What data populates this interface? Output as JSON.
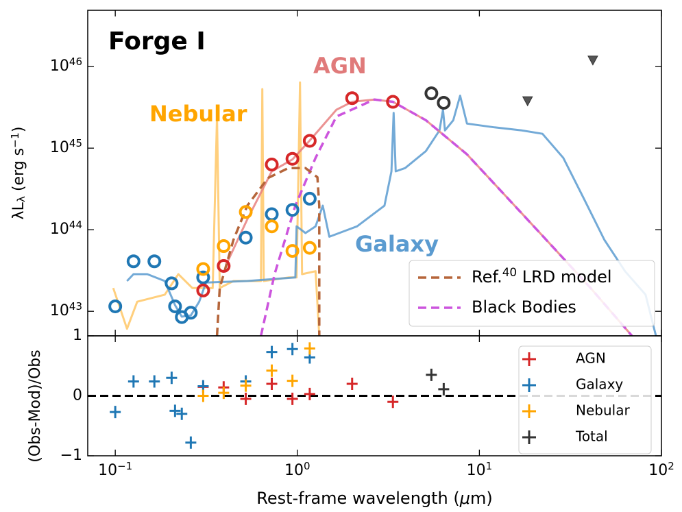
{
  "chart_data": [
    {
      "type": "scatter",
      "title": "Forge I",
      "xlog": true,
      "ylog": true,
      "xlim": [
        0.0706,
        100
      ],
      "ylim": [
        5e+42,
        4.9e+46
      ],
      "xticks": [
        0.1,
        1,
        10,
        100
      ],
      "yticks": [
        {
          "value": 1e+43,
          "label": "10",
          "sup": "43"
        },
        {
          "value": 1e+44,
          "label": "10",
          "sup": "44"
        },
        {
          "value": 1e+45,
          "label": "10",
          "sup": "45"
        },
        {
          "value": 1e+46,
          "label": "10",
          "sup": "46"
        }
      ],
      "ylabel": [
        {
          "t": "λL"
        },
        {
          "t": "λ",
          "s": "sub"
        },
        {
          "t": " (erg s"
        },
        {
          "t": "−1",
          "s": "sup"
        },
        {
          "t": ")"
        }
      ],
      "annotations": [
        {
          "text": "AGN",
          "color": "#e07a7a"
        },
        {
          "text": "Nebular",
          "color": "#ffa500"
        },
        {
          "text": "Galaxy",
          "color": "#5b9bd0"
        }
      ],
      "lines": [
        {
          "color": "#ffc766",
          "x": [
            0.0975,
            0.116,
            0.132,
            0.187,
            0.222,
            0.265,
            0.343,
            0.362,
            0.375,
            0.446,
            0.631,
            0.642,
            0.654,
            0.893,
            0.991,
            1.035,
            1.062,
            1.26,
            1.32
          ],
          "values": [
            1.93e+43,
            6.1e+42,
            1.31e+43,
            1.6e+43,
            2.85e+43,
            1.93e+43,
            1.93e+43,
            2.44e+45,
            1.93e+43,
            2.35e+43,
            2.35e+43,
            5.3e+45,
            2.35e+43,
            2.6e+43,
            2.6e+43,
            6.4e+45,
            2.85e+43,
            3.1e+43,
            5e+42
          ]
        },
        {
          "color": "#5b9bd0",
          "x": [
            0.116,
            0.126,
            0.15,
            0.187,
            0.213,
            0.232,
            0.26,
            0.289,
            0.315,
            0.531,
            0.975,
            0.991,
            1.109,
            1.26,
            1.38,
            1.5,
            2.13,
            3.01,
            3.29,
            3.38,
            3.47,
            3.91,
            5.08,
            6.04,
            6.31,
            6.47,
            7.19,
            7.84,
            8.55,
            12.1,
            17.1,
            22.2,
            28.9,
            37.5,
            48.6,
            63.1,
            81.8,
            93.3
          ],
          "values": [
            2.35e+43,
            2.85e+43,
            2.85e+43,
            2.35e+43,
            1.19e+43,
            8.6e+42,
            8.9e+42,
            1.31e+43,
            2.25e+43,
            2.35e+43,
            2.6e+43,
            1.1e+44,
            9.1e+43,
            1.1e+44,
            1.97e+44,
            8.2e+43,
            1.1e+44,
            1.97e+44,
            5.2e+44,
            2.7e+45,
            5.2e+44,
            5.7e+44,
            9.2e+44,
            1.65e+45,
            2.96e+45,
            1.65e+45,
            2.2e+45,
            4.4e+45,
            2e+45,
            1.8e+45,
            1.65e+45,
            1.5e+45,
            7.6e+44,
            2.4e+44,
            7.5e+43,
            3.1e+43,
            1.6e+43,
            5e+42
          ]
        },
        {
          "color": "#e88080",
          "x": [
            0.408,
            0.531,
            0.724,
            0.942,
            1.17,
            1.64,
            2.0,
            2.65,
            3.35,
            5.08,
            8.55,
            14.4,
            24.3,
            40.8,
            68.9
          ],
          "values": [
            3.8e+43,
            1.34e+44,
            5.2e+44,
            7.3e+44,
            1.24e+45,
            2.96e+45,
            3.7e+45,
            3.95e+45,
            3.7e+45,
            2.2e+45,
            8.4e+44,
            2.4e+44,
            6.8e+43,
            1.93e+43,
            5e+42
          ]
        },
        {
          "name": [
            {
              "t": "Black Bodies"
            }
          ],
          "color": "#cc55dd",
          "dash": true,
          "x": [
            0.631,
            0.75,
            0.975,
            1.26,
            1.64,
            2.65,
            3.35,
            5.08,
            8.55,
            14.4,
            24.3,
            40.8,
            68.9
          ],
          "values": [
            5e+42,
            2.85e+43,
            1.97e+44,
            7.6e+44,
            2.44e+45,
            3.95e+45,
            3.7e+45,
            2.2e+45,
            8.4e+44,
            2.4e+44,
            6.8e+43,
            1.93e+43,
            5e+42
          ]
        },
        {
          "name": [
            {
              "t": "Ref."
            },
            {
              "t": "40",
              "s": "sup"
            },
            {
              "t": " LRD model"
            }
          ],
          "color": "#b5653a",
          "dash": true,
          "x": [
            0.362,
            0.375,
            0.446,
            0.531,
            0.689,
            0.893,
            1.109,
            1.29,
            1.32,
            1.32
          ],
          "values": [
            5e+42,
            1.93e+43,
            7.5e+43,
            1.97e+44,
            4.3e+44,
            5.7e+44,
            5.7e+44,
            4.4e+44,
            1.97e+44,
            5e+42
          ]
        }
      ],
      "legend": "lower right",
      "series": [
        {
          "color": "#1f77b4",
          "marker": "circle",
          "x": [
            0.1,
            0.126,
            0.164,
            0.204,
            0.213,
            0.232,
            0.26,
            0.304,
            0.521,
            0.724,
            0.94,
            1.17
          ],
          "values": [
            1.15e+43,
            4.1e+43,
            4.1e+43,
            2.2e+43,
            1.15e+43,
            8.5e+42,
            9.6e+42,
            2.6e+43,
            8e+43,
            1.55e+44,
            1.75e+44,
            2.4e+44
          ]
        },
        {
          "color": "#ffa500",
          "marker": "circle",
          "x": [
            0.304,
            0.394,
            0.521,
            0.724,
            0.94,
            1.17
          ],
          "values": [
            3.3e+43,
            6.3e+43,
            1.65e+44,
            1.1e+44,
            5.5e+43,
            6e+43
          ]
        },
        {
          "color": "#d62728",
          "marker": "circle",
          "x": [
            0.304,
            0.394,
            0.724,
            0.94,
            1.17,
            2.0,
            3.35
          ],
          "values": [
            1.8e+43,
            3.6e+43,
            6.3e+44,
            7.4e+44,
            1.23e+45,
            4.1e+45,
            3.7e+45
          ]
        },
        {
          "color": "#333333",
          "marker": "circle",
          "x": [
            5.45,
            6.37
          ],
          "values": [
            4.7e+45,
            3.6e+45
          ]
        },
        {
          "color": "#555555",
          "marker": "triangle-down",
          "x": [
            18.4,
            42
          ],
          "values": [
            3.8e+45,
            1.2e+46
          ]
        }
      ]
    },
    {
      "type": "scatter",
      "xlog": true,
      "xlim": [
        0.0706,
        100
      ],
      "ylim": [
        -1,
        1
      ],
      "xticks": [
        {
          "value": 0.1,
          "label": "10",
          "sup": "−1"
        },
        {
          "value": 1,
          "label": "10",
          "sup": "0"
        },
        {
          "value": 10,
          "label": "10",
          "sup": "1"
        },
        {
          "value": 100,
          "label": "10",
          "sup": "2"
        }
      ],
      "yticks": [
        {
          "value": -1,
          "label": "−1"
        },
        0,
        1
      ],
      "xlabel": [
        {
          "t": "Rest-frame wavelength ("
        },
        {
          "t": "μ",
          "s": "italic"
        },
        {
          "t": "m)"
        }
      ],
      "ylabel": "(Obs-Mod)/Obs",
      "hline": 0,
      "legend": "upper right",
      "series": [
        {
          "name": "AGN",
          "color": "#d62728",
          "x": [
            0.304,
            0.394,
            0.521,
            0.724,
            0.94,
            1.17,
            2.0,
            3.35
          ],
          "values": [
            0.15,
            0.14,
            -0.05,
            0.2,
            -0.05,
            0.03,
            0.2,
            -0.1
          ]
        },
        {
          "name": "Galaxy",
          "color": "#1f77b4",
          "x": [
            0.1,
            0.126,
            0.164,
            0.204,
            0.213,
            0.232,
            0.26,
            0.304,
            0.521,
            0.724,
            0.94,
            1.17
          ],
          "values": [
            -0.27,
            0.24,
            0.24,
            0.3,
            -0.25,
            -0.3,
            -0.78,
            0.16,
            0.24,
            0.73,
            0.78,
            0.64
          ]
        },
        {
          "name": "Nebular",
          "color": "#ffa500",
          "x": [
            0.304,
            0.394,
            0.521,
            0.724,
            0.94,
            1.17
          ],
          "values": [
            0.0,
            0.05,
            0.17,
            0.42,
            0.25,
            0.79
          ]
        },
        {
          "name": "Total",
          "color": "#333333",
          "x": [
            5.45,
            6.37
          ],
          "values": [
            0.35,
            0.11
          ]
        }
      ]
    }
  ]
}
